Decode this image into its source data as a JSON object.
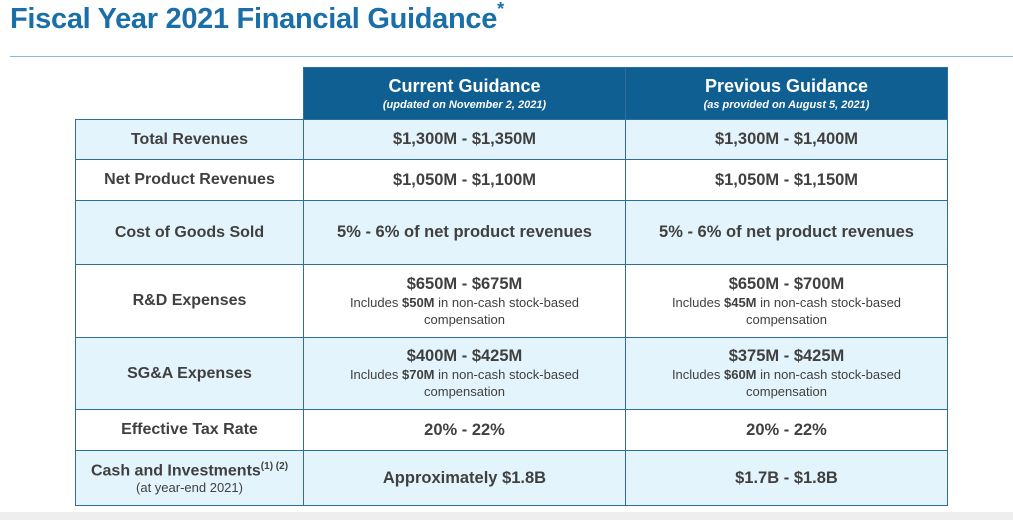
{
  "title": "Fiscal Year 2021 Financial Guidance",
  "title_mark": "*",
  "columns": [
    {
      "label": "Current Guidance",
      "sublabel": "(updated on November 2, 2021)"
    },
    {
      "label": "Previous Guidance",
      "sublabel": "(as provided on August 5, 2021)"
    }
  ],
  "rows": [
    {
      "label": "Total Revenues",
      "current": "$1,300M - $1,350M",
      "previous": "$1,300M - $1,400M"
    },
    {
      "label": "Net Product Revenues",
      "current": "$1,050M - $1,100M",
      "previous": "$1,050M - $1,150M"
    },
    {
      "label": "Cost of Goods Sold",
      "current": "5% - 6% of net product revenues",
      "previous": "5% - 6% of net product revenues"
    },
    {
      "label": "R&D Expenses",
      "current": "$650M - $675M",
      "current_note_pre": "Includes ",
      "current_note_amt": "$50M",
      "current_note_post": " in non-cash stock-based compensation",
      "previous": "$650M - $700M",
      "previous_note_pre": "Includes ",
      "previous_note_amt": "$45M",
      "previous_note_post": " in non-cash stock-based compensation"
    },
    {
      "label": "SG&A Expenses",
      "current": "$400M - $425M",
      "current_note_pre": "Includes ",
      "current_note_amt": "$70M",
      "current_note_post": " in non-cash stock-based compensation",
      "previous": "$375M - $425M",
      "previous_note_pre": "Includes ",
      "previous_note_amt": "$60M",
      "previous_note_post": " in non-cash stock-based compensation"
    },
    {
      "label": "Effective Tax Rate",
      "current": "20% - 22%",
      "previous": "20% - 22%"
    },
    {
      "label": "Cash and Investments",
      "footnotes": "(1) (2)",
      "sublabel": "(at year-end 2021)",
      "current": "Approximately $1.8B",
      "previous": "$1.7B - $1.8B"
    }
  ],
  "colors": {
    "title": "#1a6fa8",
    "header_bg": "#0f5f92",
    "alt_row": "#e4f4fc",
    "border": "#2e6e9a"
  }
}
